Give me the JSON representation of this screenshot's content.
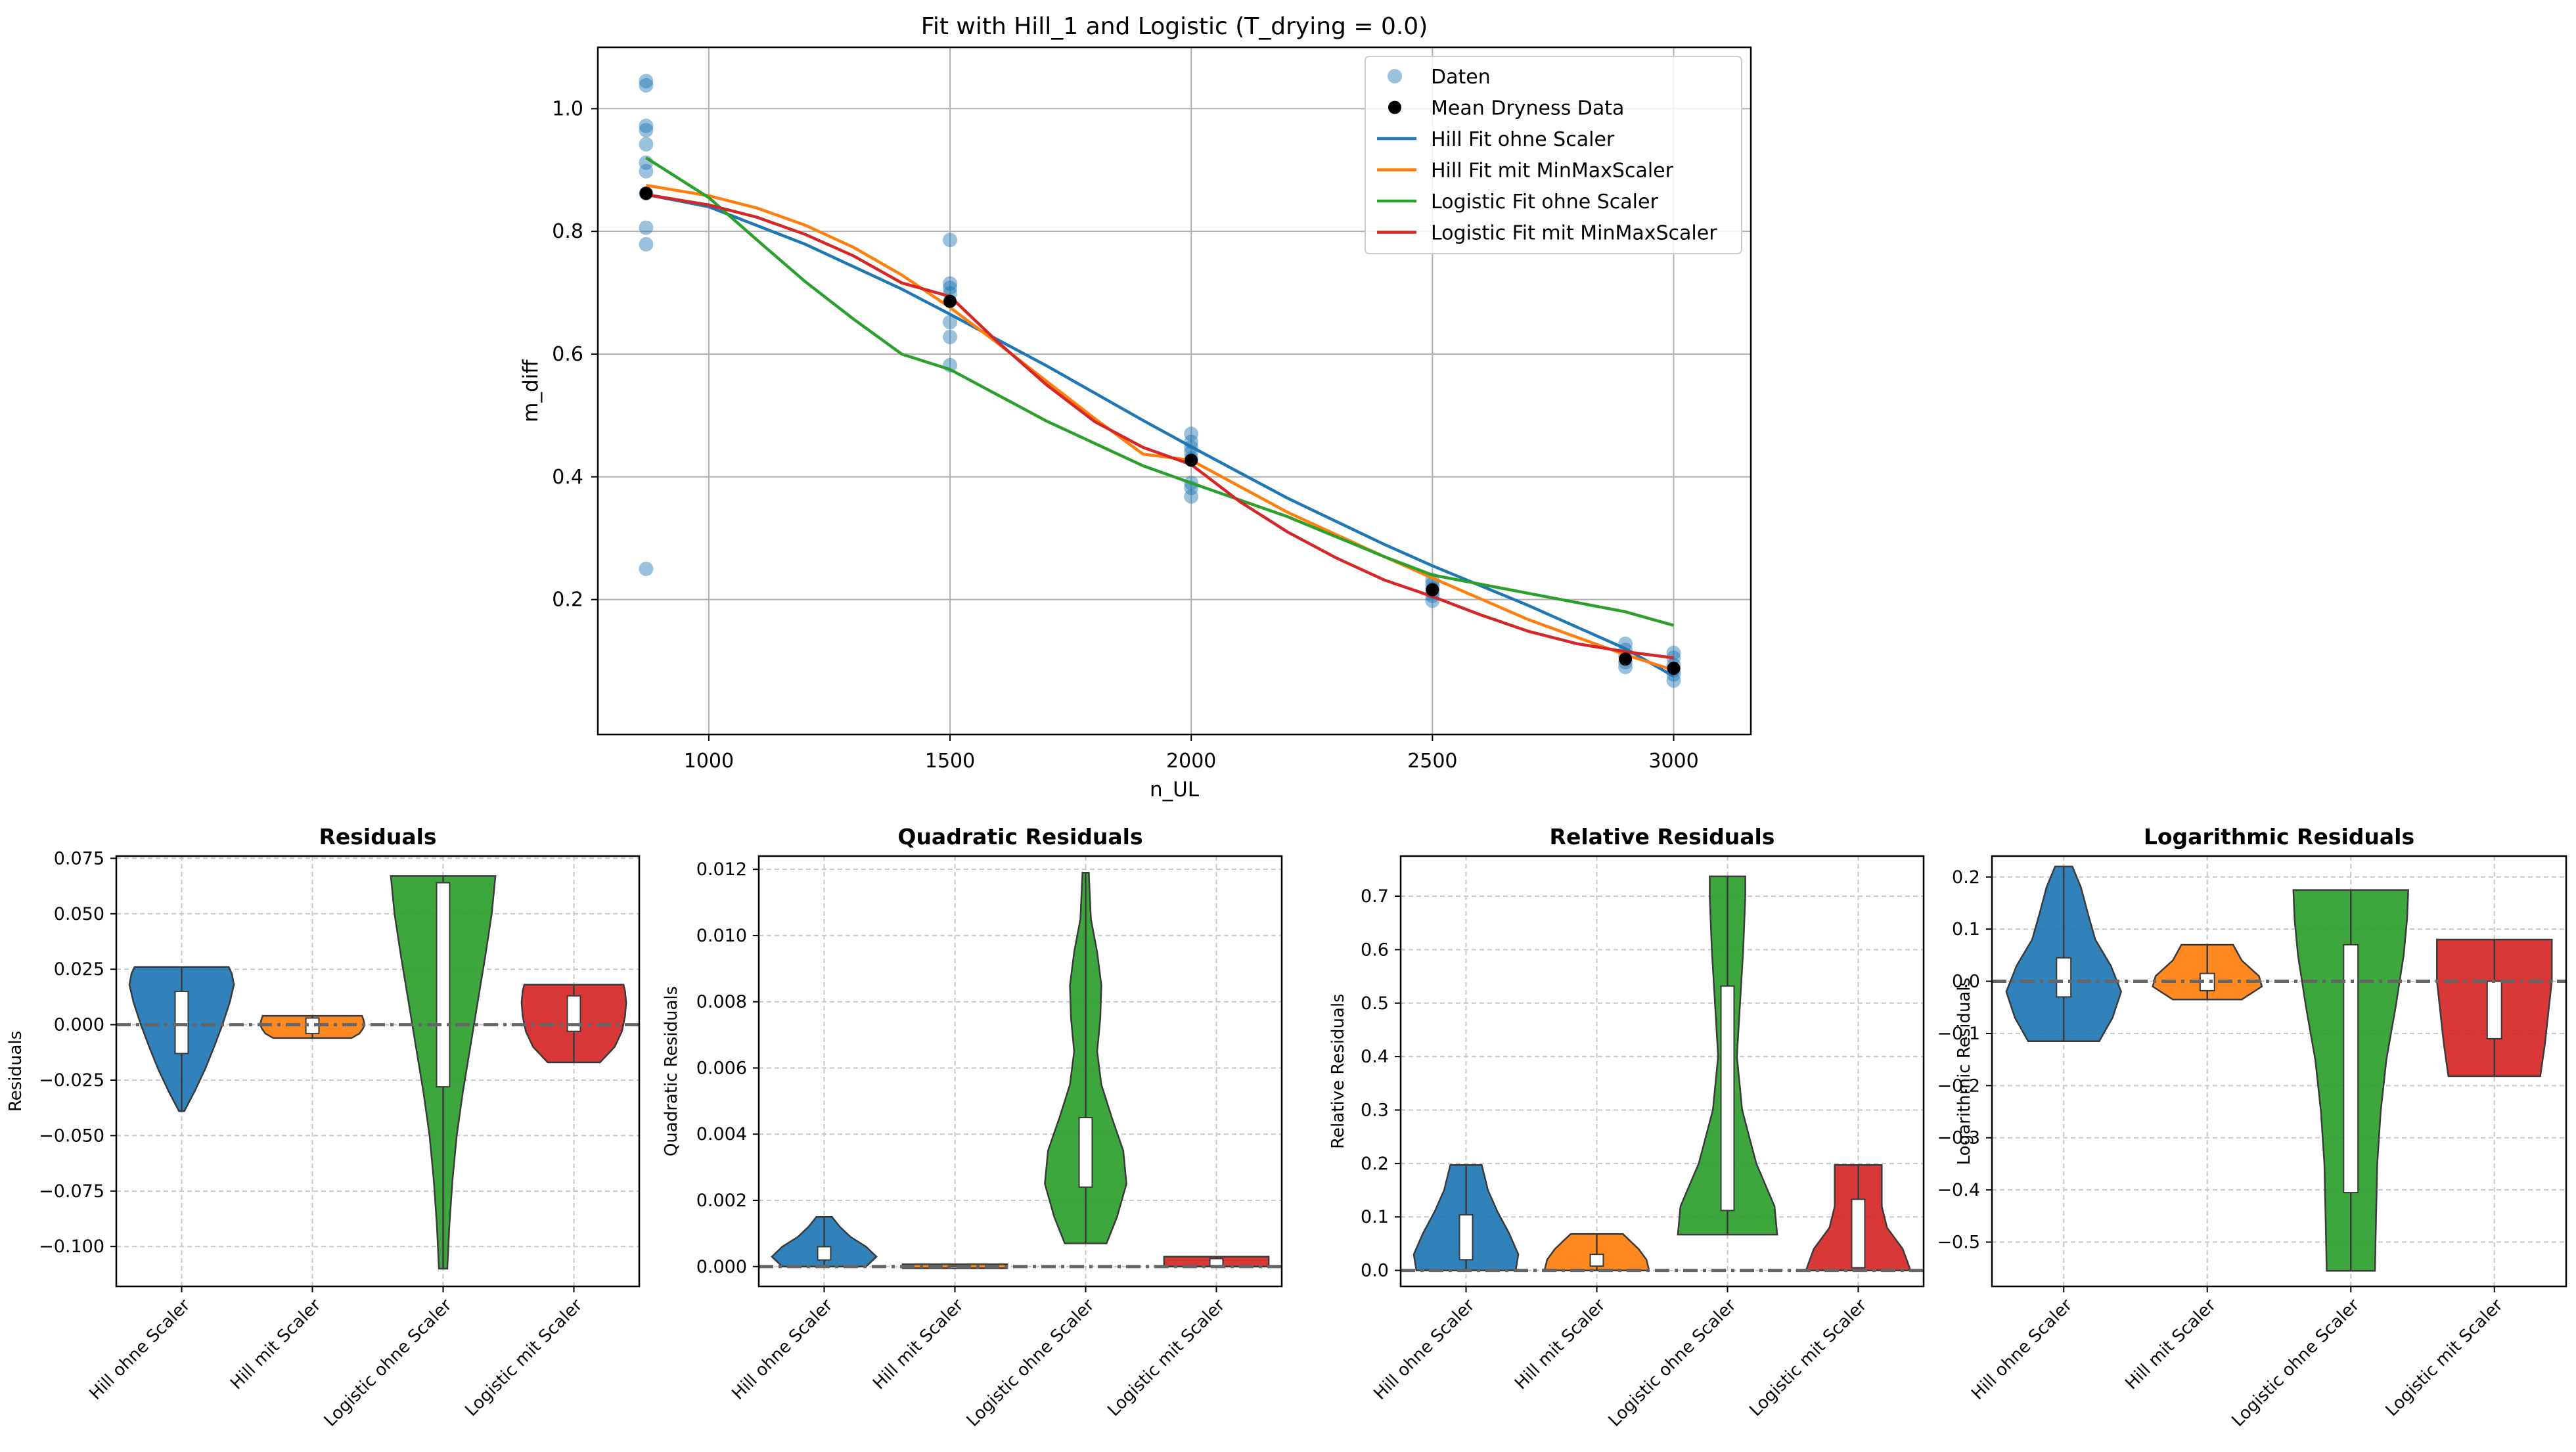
{
  "chart_data": [
    {
      "id": "main",
      "type": "line",
      "title": "Fit with Hill_1 and Logistic (T_drying = 0.0)",
      "xlabel": "n_UL",
      "ylabel": "m_diff",
      "xlim": [
        770,
        3160
      ],
      "ylim": [
        -0.02,
        1.1
      ],
      "xticks": [
        1000,
        1500,
        2000,
        2500,
        3000
      ],
      "yticks": [
        0.2,
        0.4,
        0.6,
        0.8,
        1.0
      ],
      "xtick_labels": [
        "1000",
        "1500",
        "2000",
        "2500",
        "3000"
      ],
      "ytick_labels": [
        "0.2",
        "0.4",
        "0.6",
        "0.8",
        "1.0"
      ],
      "grid": true,
      "legend_position": "top-right",
      "scatter": {
        "name": "Daten",
        "color": "#1f77b4",
        "points": [
          [
            870,
            1.045
          ],
          [
            870,
            1.038
          ],
          [
            870,
            0.972
          ],
          [
            870,
            0.965
          ],
          [
            870,
            0.942
          ],
          [
            870,
            0.912
          ],
          [
            870,
            0.898
          ],
          [
            870,
            0.862
          ],
          [
            870,
            0.806
          ],
          [
            870,
            0.779
          ],
          [
            870,
            0.25
          ],
          [
            1500,
            0.786
          ],
          [
            1500,
            0.715
          ],
          [
            1500,
            0.708
          ],
          [
            1500,
            0.699
          ],
          [
            1500,
            0.652
          ],
          [
            1500,
            0.628
          ],
          [
            1500,
            0.582
          ],
          [
            2000,
            0.47
          ],
          [
            2000,
            0.457
          ],
          [
            2000,
            0.448
          ],
          [
            2000,
            0.44
          ],
          [
            2000,
            0.43
          ],
          [
            2000,
            0.39
          ],
          [
            2000,
            0.382
          ],
          [
            2000,
            0.368
          ],
          [
            2500,
            0.232
          ],
          [
            2500,
            0.225
          ],
          [
            2500,
            0.218
          ],
          [
            2500,
            0.212
          ],
          [
            2500,
            0.206
          ],
          [
            2500,
            0.198
          ],
          [
            2900,
            0.128
          ],
          [
            2900,
            0.118
          ],
          [
            2900,
            0.108
          ],
          [
            2900,
            0.098
          ],
          [
            2900,
            0.09
          ],
          [
            3000,
            0.113
          ],
          [
            3000,
            0.105
          ],
          [
            3000,
            0.093
          ],
          [
            3000,
            0.085
          ],
          [
            3000,
            0.078
          ],
          [
            3000,
            0.068
          ]
        ]
      },
      "mean_points": {
        "name": "Mean Dryness Data",
        "color": "#000000",
        "points": [
          [
            870,
            0.862
          ],
          [
            1500,
            0.686
          ],
          [
            2000,
            0.427
          ],
          [
            2500,
            0.216
          ],
          [
            2900,
            0.103
          ],
          [
            3000,
            0.088
          ]
        ]
      },
      "series": [
        {
          "name": "Hill Fit ohne Scaler",
          "color": "#1f77b4",
          "x": [
            870,
            1000,
            1200,
            1400,
            1500,
            1700,
            1900,
            2000,
            2200,
            2400,
            2500,
            2700,
            2900,
            3000
          ],
          "y": [
            0.86,
            0.84,
            0.779,
            0.706,
            0.665,
            0.581,
            0.492,
            0.449,
            0.365,
            0.29,
            0.255,
            0.19,
            0.12,
            0.075
          ]
        },
        {
          "name": "Hill Fit mit MinMaxScaler",
          "color": "#ff7f0e",
          "x": [
            870,
            1000,
            1100,
            1200,
            1300,
            1400,
            1500,
            1600,
            1700,
            1800,
            1900,
            2000,
            2200,
            2400,
            2500,
            2700,
            2900,
            3000
          ],
          "y": [
            0.875,
            0.858,
            0.838,
            0.81,
            0.774,
            0.729,
            0.676,
            0.617,
            0.556,
            0.495,
            0.437,
            0.427,
            0.342,
            0.27,
            0.235,
            0.167,
            0.11,
            0.085
          ]
        },
        {
          "name": "Logistic Fit ohne Scaler",
          "color": "#2ca02c",
          "x": [
            870,
            1000,
            1100,
            1200,
            1300,
            1400,
            1500,
            1700,
            1900,
            2000,
            2200,
            2400,
            2500,
            2700,
            2900,
            3000
          ],
          "y": [
            0.92,
            0.855,
            0.786,
            0.718,
            0.657,
            0.6,
            0.575,
            0.491,
            0.418,
            0.39,
            0.335,
            0.27,
            0.24,
            0.21,
            0.18,
            0.158
          ]
        },
        {
          "name": "Logistic Fit mit MinMaxScaler",
          "color": "#d62728",
          "x": [
            870,
            1000,
            1100,
            1200,
            1300,
            1400,
            1500,
            1600,
            1700,
            1800,
            1900,
            2000,
            2100,
            2200,
            2300,
            2400,
            2500,
            2600,
            2700,
            2800,
            2900,
            3000
          ],
          "y": [
            0.86,
            0.843,
            0.823,
            0.795,
            0.76,
            0.716,
            0.694,
            0.619,
            0.55,
            0.49,
            0.448,
            0.42,
            0.36,
            0.31,
            0.268,
            0.232,
            0.205,
            0.175,
            0.148,
            0.128,
            0.115,
            0.105
          ]
        }
      ]
    },
    {
      "id": "residuals",
      "type": "violin",
      "title": "Residuals",
      "ylabel": "Residuals",
      "ylim": [
        -0.118,
        0.076
      ],
      "yticks": [
        -0.1,
        -0.075,
        -0.05,
        -0.025,
        0.0,
        0.025,
        0.05,
        0.075
      ],
      "ytick_labels": [
        "−0.100",
        "−0.075",
        "−0.050",
        "−0.025",
        "0.000",
        "0.025",
        "0.050",
        "0.075"
      ],
      "categories": [
        "Hill ohne Scaler",
        "Hill mit Scaler",
        "Logistic ohne Scaler",
        "Logistic mit Scaler"
      ],
      "violins": [
        {
          "color": "#1f77b4",
          "min": -0.039,
          "max": 0.026,
          "q1": -0.013,
          "q3": 0.015,
          "width": [
            [
              -0.039,
              0.05
            ],
            [
              -0.03,
              0.25
            ],
            [
              -0.02,
              0.45
            ],
            [
              -0.01,
              0.62
            ],
            [
              0.0,
              0.78
            ],
            [
              0.01,
              0.92
            ],
            [
              0.018,
              1.0
            ],
            [
              0.023,
              0.96
            ],
            [
              0.026,
              0.9
            ]
          ]
        },
        {
          "color": "#ff7f0e",
          "min": -0.006,
          "max": 0.004,
          "q1": -0.004,
          "q3": 0.003,
          "width": [
            [
              -0.006,
              0.75
            ],
            [
              -0.004,
              0.9
            ],
            [
              -0.002,
              0.96
            ],
            [
              0.0,
              1.0
            ],
            [
              0.002,
              0.98
            ],
            [
              0.004,
              0.95
            ]
          ]
        },
        {
          "color": "#2ca02c",
          "min": -0.11,
          "max": 0.067,
          "q1": -0.028,
          "q3": 0.064,
          "width": [
            [
              -0.11,
              0.08
            ],
            [
              -0.09,
              0.12
            ],
            [
              -0.07,
              0.18
            ],
            [
              -0.05,
              0.26
            ],
            [
              -0.03,
              0.38
            ],
            [
              -0.01,
              0.52
            ],
            [
              0.01,
              0.66
            ],
            [
              0.03,
              0.8
            ],
            [
              0.05,
              0.93
            ],
            [
              0.067,
              1.0
            ]
          ]
        },
        {
          "color": "#d62728",
          "min": -0.017,
          "max": 0.018,
          "q1": -0.003,
          "q3": 0.013,
          "width": [
            [
              -0.017,
              0.5
            ],
            [
              -0.01,
              0.78
            ],
            [
              -0.003,
              0.92
            ],
            [
              0.004,
              0.98
            ],
            [
              0.01,
              1.0
            ],
            [
              0.015,
              0.98
            ],
            [
              0.018,
              0.95
            ]
          ]
        }
      ]
    },
    {
      "id": "quadratic",
      "type": "violin",
      "title": "Quadratic Residuals",
      "ylabel": "Quadratic Residuals",
      "ylim": [
        -0.0006,
        0.0124
      ],
      "yticks": [
        0.0,
        0.002,
        0.004,
        0.006,
        0.008,
        0.01,
        0.012
      ],
      "ytick_labels": [
        "0.000",
        "0.002",
        "0.004",
        "0.006",
        "0.008",
        "0.010",
        "0.012"
      ],
      "categories": [
        "Hill ohne Scaler",
        "Hill mit Scaler",
        "Logistic ohne Scaler",
        "Logistic mit Scaler"
      ],
      "violins": [
        {
          "color": "#1f77b4",
          "min": 0.0,
          "max": 0.0015,
          "q1": 0.0002,
          "q3": 0.0006,
          "width": [
            [
              0.0,
              0.8
            ],
            [
              0.0003,
              1.0
            ],
            [
              0.0006,
              0.8
            ],
            [
              0.0009,
              0.5
            ],
            [
              0.0012,
              0.3
            ],
            [
              0.0015,
              0.15
            ]
          ]
        },
        {
          "color": "#ff7f0e",
          "min": 0.0,
          "max": 2e-05,
          "q1": 0.0,
          "q3": 1e-05,
          "width": [
            [
              0.0,
              1.0
            ],
            [
              2e-05,
              1.0
            ]
          ]
        },
        {
          "color": "#2ca02c",
          "min": 0.0007,
          "max": 0.0119,
          "q1": 0.0024,
          "q3": 0.0045,
          "width": [
            [
              0.0007,
              0.4
            ],
            [
              0.0015,
              0.6
            ],
            [
              0.0025,
              0.78
            ],
            [
              0.0035,
              0.72
            ],
            [
              0.0045,
              0.5
            ],
            [
              0.0055,
              0.3
            ],
            [
              0.0065,
              0.22
            ],
            [
              0.0075,
              0.28
            ],
            [
              0.0085,
              0.3
            ],
            [
              0.0095,
              0.22
            ],
            [
              0.0105,
              0.1
            ],
            [
              0.0119,
              0.06
            ]
          ]
        },
        {
          "color": "#d62728",
          "min": 0.0,
          "max": 0.0003,
          "q1": 1e-05,
          "q3": 0.00024,
          "width": [
            [
              0.0,
              1.0
            ],
            [
              0.0003,
              1.0
            ]
          ]
        }
      ]
    },
    {
      "id": "relative",
      "type": "violin",
      "title": "Relative Residuals",
      "ylabel": "Relative Residuals",
      "ylim": [
        -0.03,
        0.775
      ],
      "yticks": [
        0.0,
        0.1,
        0.2,
        0.3,
        0.4,
        0.5,
        0.6,
        0.7
      ],
      "ytick_labels": [
        "0.0",
        "0.1",
        "0.2",
        "0.3",
        "0.4",
        "0.5",
        "0.6",
        "0.7"
      ],
      "categories": [
        "Hill ohne Scaler",
        "Hill mit Scaler",
        "Logistic ohne Scaler",
        "Logistic mit Scaler"
      ],
      "violins": [
        {
          "color": "#1f77b4",
          "min": 0.0,
          "max": 0.197,
          "q1": 0.02,
          "q3": 0.104,
          "width": [
            [
              0.0,
              0.95
            ],
            [
              0.03,
              1.0
            ],
            [
              0.07,
              0.82
            ],
            [
              0.11,
              0.6
            ],
            [
              0.15,
              0.42
            ],
            [
              0.197,
              0.3
            ]
          ]
        },
        {
          "color": "#ff7f0e",
          "min": 0.0,
          "max": 0.068,
          "q1": 0.008,
          "q3": 0.03,
          "width": [
            [
              0.0,
              1.0
            ],
            [
              0.02,
              0.95
            ],
            [
              0.04,
              0.8
            ],
            [
              0.068,
              0.5
            ]
          ]
        },
        {
          "color": "#2ca02c",
          "min": 0.067,
          "max": 0.737,
          "q1": 0.112,
          "q3": 0.532,
          "width": [
            [
              0.067,
              0.95
            ],
            [
              0.12,
              0.9
            ],
            [
              0.2,
              0.55
            ],
            [
              0.3,
              0.28
            ],
            [
              0.4,
              0.18
            ],
            [
              0.5,
              0.24
            ],
            [
              0.6,
              0.3
            ],
            [
              0.7,
              0.34
            ],
            [
              0.737,
              0.34
            ]
          ]
        },
        {
          "color": "#d62728",
          "min": 0.0,
          "max": 0.197,
          "q1": 0.005,
          "q3": 0.133,
          "width": [
            [
              0.0,
              1.0
            ],
            [
              0.04,
              0.85
            ],
            [
              0.08,
              0.55
            ],
            [
              0.12,
              0.45
            ],
            [
              0.16,
              0.45
            ],
            [
              0.197,
              0.45
            ]
          ]
        }
      ]
    },
    {
      "id": "logarithmic",
      "type": "violin",
      "title": "Logarithmic Residuals",
      "ylabel": "Logarithmic Residuals",
      "ylim": [
        -0.585,
        0.24
      ],
      "yticks": [
        -0.5,
        -0.4,
        -0.3,
        -0.2,
        -0.1,
        0.0,
        0.1,
        0.2
      ],
      "ytick_labels": [
        "−0.5",
        "−0.4",
        "−0.3",
        "−0.2",
        "−0.1",
        "0.0",
        "0.1",
        "0.2"
      ],
      "categories": [
        "Hill ohne Scaler",
        "Hill mit Scaler",
        "Logistic ohne Scaler",
        "Logistic mit Scaler"
      ],
      "violins": [
        {
          "color": "#1f77b4",
          "min": -0.115,
          "max": 0.22,
          "q1": -0.03,
          "q3": 0.045,
          "width": [
            [
              -0.115,
              0.62
            ],
            [
              -0.07,
              0.85
            ],
            [
              -0.02,
              1.0
            ],
            [
              0.03,
              0.82
            ],
            [
              0.08,
              0.55
            ],
            [
              0.13,
              0.42
            ],
            [
              0.18,
              0.3
            ],
            [
              0.22,
              0.15
            ]
          ]
        },
        {
          "color": "#ff7f0e",
          "min": -0.035,
          "max": 0.07,
          "q1": -0.018,
          "q3": 0.015,
          "width": [
            [
              -0.035,
              0.6
            ],
            [
              -0.01,
              0.95
            ],
            [
              0.01,
              0.9
            ],
            [
              0.04,
              0.6
            ],
            [
              0.07,
              0.45
            ]
          ]
        },
        {
          "color": "#2ca02c",
          "min": -0.555,
          "max": 0.175,
          "q1": -0.405,
          "q3": 0.07,
          "width": [
            [
              -0.555,
              0.42
            ],
            [
              -0.45,
              0.44
            ],
            [
              -0.35,
              0.46
            ],
            [
              -0.25,
              0.52
            ],
            [
              -0.15,
              0.62
            ],
            [
              -0.05,
              0.78
            ],
            [
              0.05,
              0.92
            ],
            [
              0.12,
              0.98
            ],
            [
              0.175,
              1.0
            ]
          ]
        },
        {
          "color": "#d62728",
          "min": -0.182,
          "max": 0.08,
          "q1": -0.11,
          "q3": 0.0,
          "width": [
            [
              -0.182,
              0.8
            ],
            [
              -0.12,
              0.88
            ],
            [
              -0.05,
              0.95
            ],
            [
              0.0,
              1.0
            ],
            [
              0.05,
              1.0
            ],
            [
              0.08,
              1.0
            ]
          ]
        }
      ]
    }
  ]
}
